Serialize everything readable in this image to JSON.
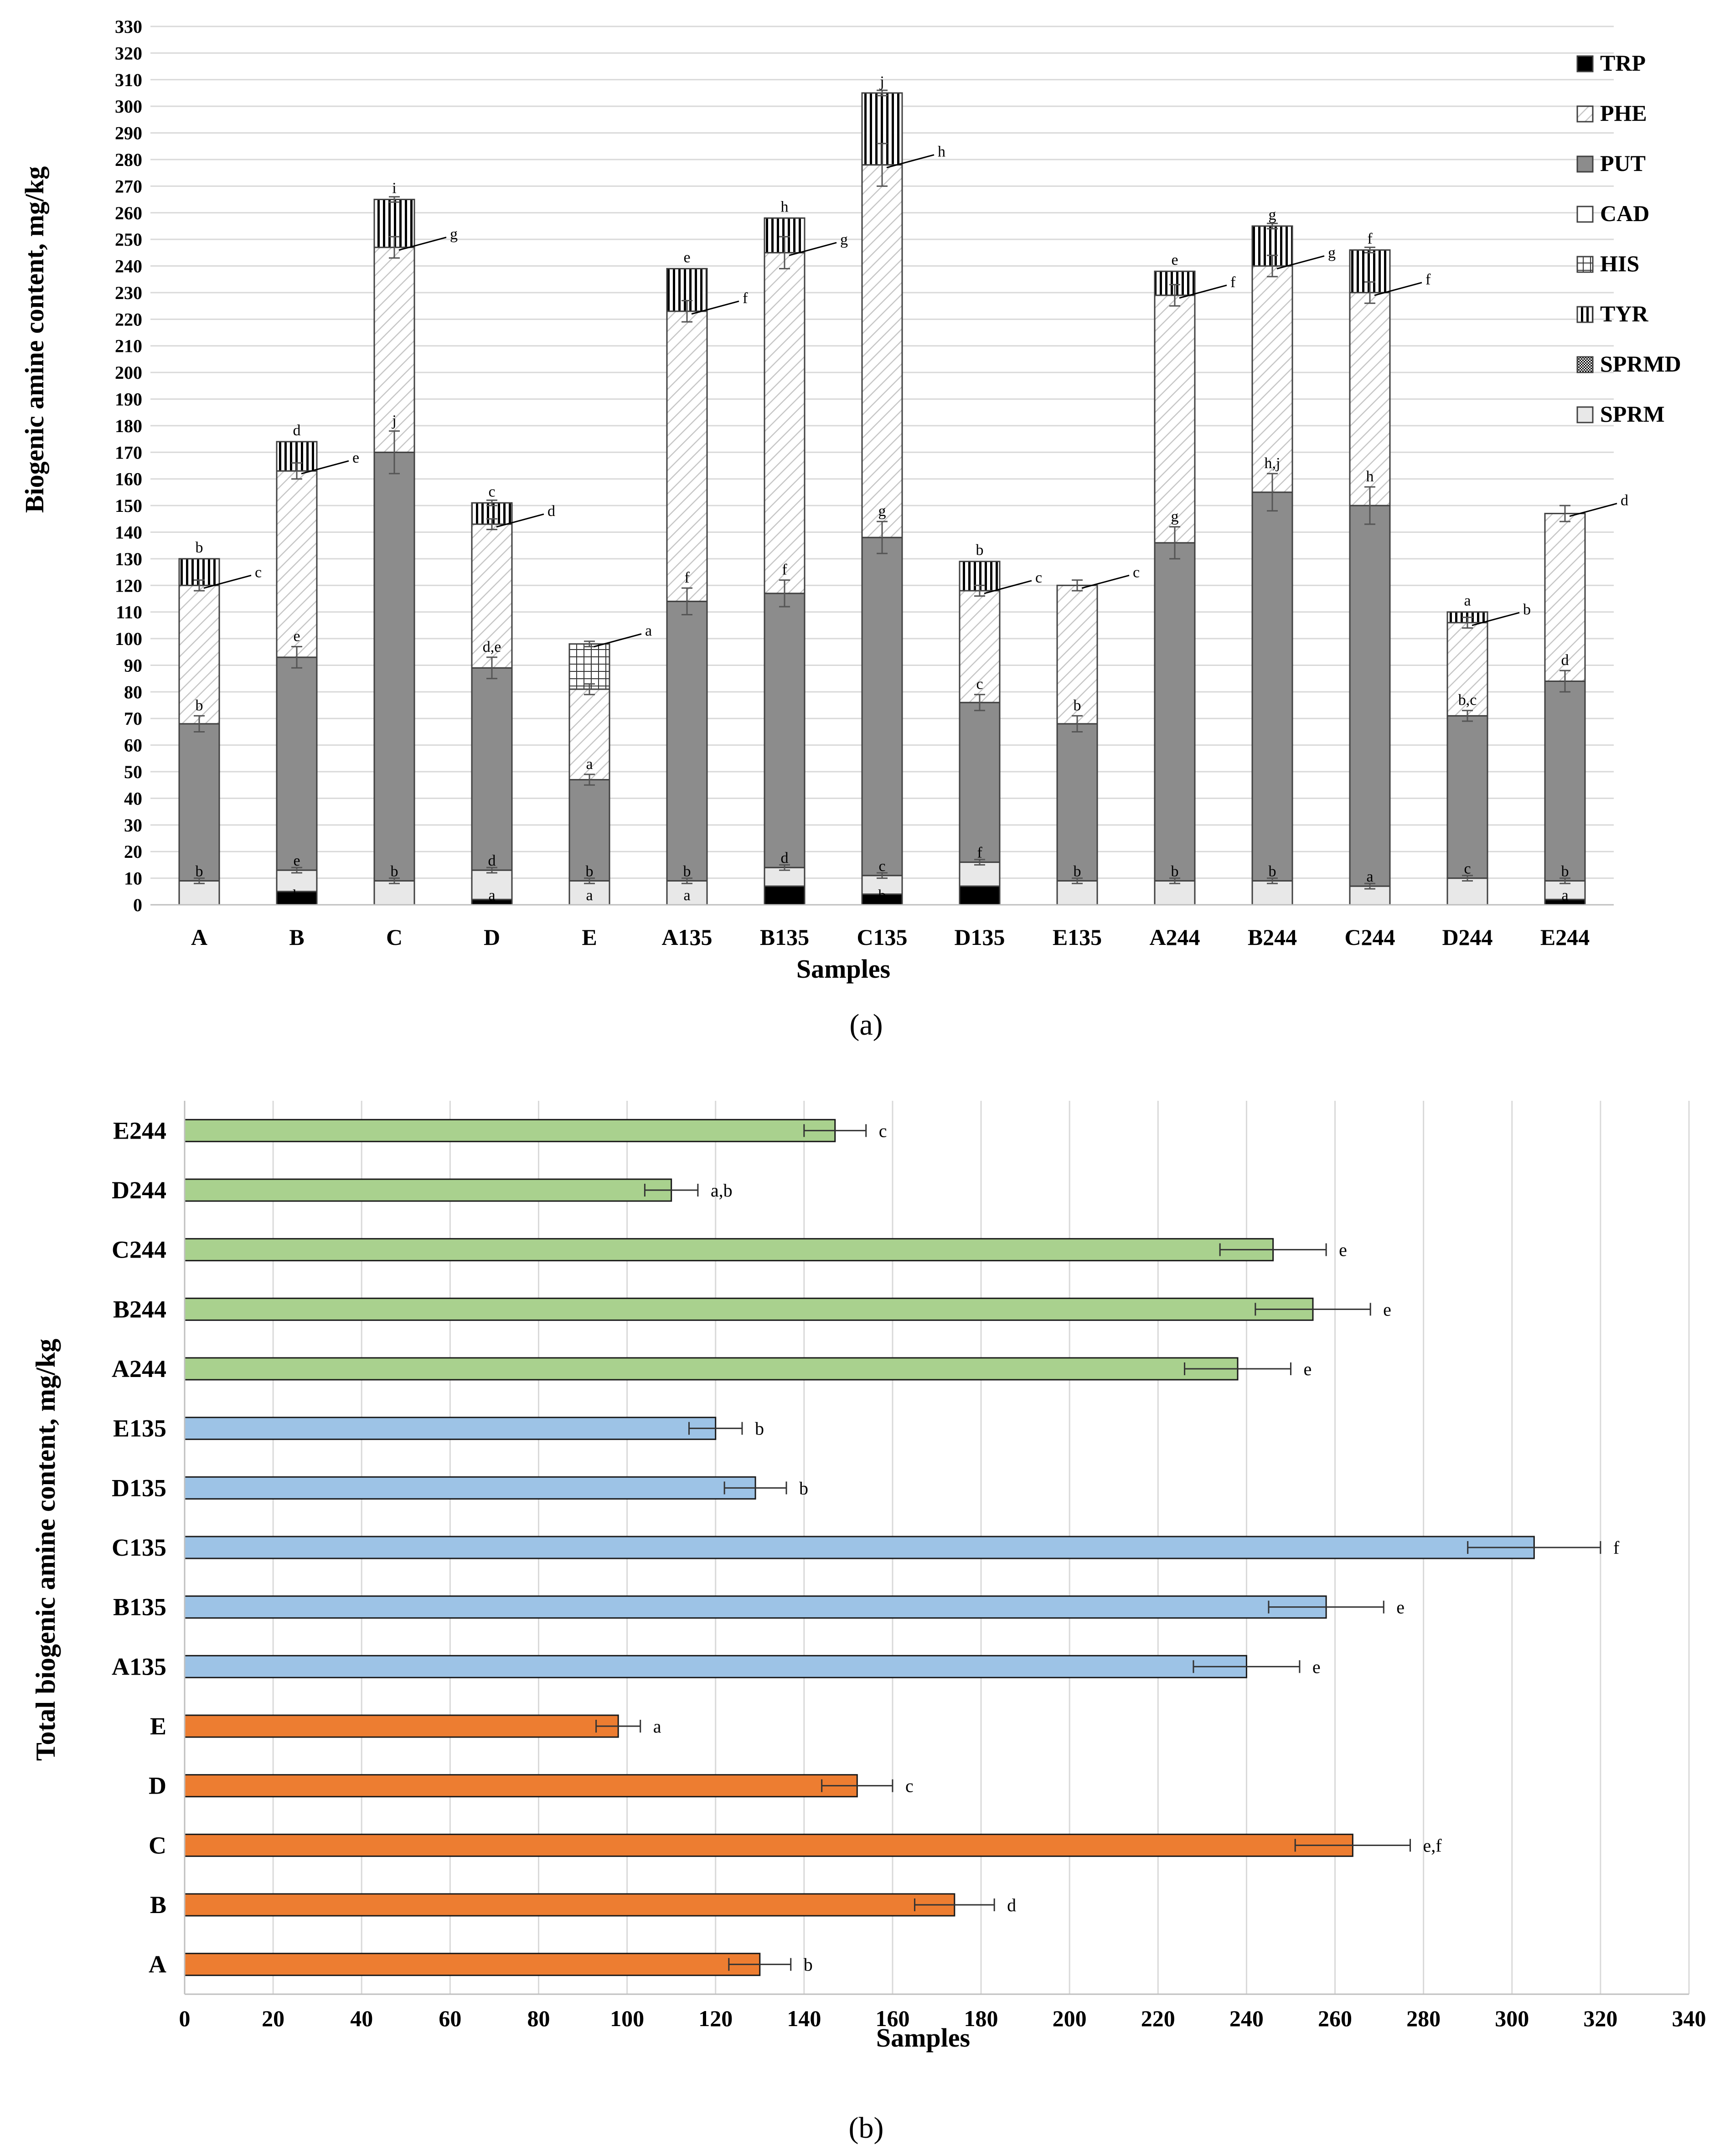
{
  "chart_data": [
    {
      "type": "stacked-bar",
      "panel_label": "(a)",
      "xlabel": "Samples",
      "ylabel": "Biogenic amine content, mg/kg",
      "ylim": [
        0,
        330
      ],
      "ytick_step": 10,
      "grid": "horizontal",
      "legend_position": "top-right",
      "categories": [
        "A",
        "B",
        "C",
        "D",
        "E",
        "A135",
        "B135",
        "C135",
        "D135",
        "E135",
        "A244",
        "B244",
        "C244",
        "D244",
        "E244"
      ],
      "series": [
        {
          "name": "TRP",
          "values": [
            0,
            5,
            0,
            2,
            0,
            0,
            7,
            4,
            7,
            0,
            0,
            0,
            0,
            0,
            2
          ]
        },
        {
          "name": "SPRM",
          "values": [
            9,
            8,
            9,
            11,
            9,
            9,
            7,
            7,
            9,
            9,
            9,
            9,
            7,
            10,
            7
          ]
        },
        {
          "name": "SPRMD",
          "values": [
            0,
            0,
            0,
            0,
            0,
            0,
            0,
            0,
            0,
            0,
            0,
            0,
            0,
            0,
            0
          ]
        },
        {
          "name": "PUT",
          "values": [
            59,
            80,
            161,
            76,
            38,
            105,
            103,
            127,
            60,
            59,
            127,
            146,
            143,
            61,
            75
          ]
        },
        {
          "name": "CAD",
          "values": [
            0,
            0,
            0,
            0,
            0,
            0,
            0,
            0,
            0,
            0,
            0,
            0,
            0,
            0,
            0
          ]
        },
        {
          "name": "PHE",
          "values": [
            52,
            70,
            77,
            54,
            34,
            109,
            128,
            140,
            42,
            52,
            93,
            85,
            80,
            35,
            63
          ]
        },
        {
          "name": "HIS",
          "values": [
            0,
            0,
            0,
            0,
            17,
            0,
            0,
            0,
            0,
            0,
            0,
            0,
            0,
            0,
            0
          ]
        },
        {
          "name": "TYR",
          "values": [
            10,
            11,
            18,
            8,
            0,
            16,
            13,
            27,
            11,
            0,
            9,
            15,
            16,
            4,
            0
          ]
        }
      ],
      "legend": [
        "TRP",
        "PHE",
        "PUT",
        "CAD",
        "HIS",
        "TYR",
        "SPRMD",
        "SPRM"
      ],
      "errors": {
        "SPRM": [
          1,
          1,
          1,
          1,
          1,
          1,
          1,
          1,
          1,
          1,
          1,
          1,
          1,
          1,
          1
        ],
        "PUT": [
          3,
          4,
          8,
          4,
          2,
          5,
          5,
          6,
          3,
          3,
          6,
          7,
          7,
          2,
          4
        ],
        "PHE": [
          2,
          3,
          4,
          2,
          2,
          4,
          6,
          8,
          2,
          2,
          4,
          4,
          4,
          2,
          3
        ],
        "TYR": [
          0,
          0,
          1,
          1,
          1,
          0,
          0,
          1,
          0,
          0,
          0,
          1,
          1,
          0,
          0
        ]
      },
      "letters": {
        "low": [
          "",
          "b",
          "",
          "a",
          "a",
          "a",
          "",
          "b",
          "c",
          "",
          "",
          "",
          "",
          "",
          "a"
        ],
        "sprm": [
          "b",
          "e",
          "b",
          "d",
          "b",
          "b",
          "d",
          "c",
          "f",
          "b",
          "b",
          "b",
          "a",
          "c",
          "b"
        ],
        "put": [
          "b",
          "e",
          "j",
          "d,e",
          "a",
          "f",
          "f",
          "g",
          "c",
          "b",
          "g",
          "h,j",
          "h",
          "b,c",
          "d"
        ],
        "phe": [
          "c",
          "e",
          "g",
          "d",
          "a",
          "f",
          "g",
          "h",
          "c",
          "c",
          "f",
          "g",
          "f",
          "b",
          "d"
        ],
        "top": [
          "b",
          "d",
          "i",
          "c",
          "",
          "e",
          "h",
          "j",
          "b",
          "",
          "e",
          "g",
          "f",
          "a",
          ""
        ]
      }
    },
    {
      "type": "bar",
      "orientation": "horizontal",
      "panel_label": "(b)",
      "xlabel": "Samples",
      "ylabel": "Total biogenic amine content, mg/kg",
      "xlim": [
        0,
        340
      ],
      "xtick_step": 20,
      "grid": "vertical",
      "categories": [
        "A",
        "B",
        "C",
        "D",
        "E",
        "A135",
        "B135",
        "C135",
        "D135",
        "E135",
        "A244",
        "B244",
        "C244",
        "D244",
        "E244"
      ],
      "values": [
        130,
        174,
        264,
        152,
        98,
        240,
        258,
        305,
        129,
        120,
        238,
        255,
        246,
        110,
        147
      ],
      "errors": [
        7,
        9,
        13,
        8,
        5,
        12,
        13,
        15,
        7,
        6,
        12,
        13,
        12,
        6,
        7
      ],
      "letters": [
        "b",
        "d",
        "e,f",
        "c",
        "a",
        "e",
        "e",
        "f",
        "b",
        "b",
        "e",
        "e",
        "e",
        "a,b",
        "c"
      ],
      "group_colors": [
        "#ed7d31",
        "#ed7d31",
        "#ed7d31",
        "#ed7d31",
        "#ed7d31",
        "#9dc3e6",
        "#9dc3e6",
        "#9dc3e6",
        "#9dc3e6",
        "#9dc3e6",
        "#a9d18e",
        "#a9d18e",
        "#a9d18e",
        "#a9d18e",
        "#a9d18e"
      ]
    }
  ]
}
